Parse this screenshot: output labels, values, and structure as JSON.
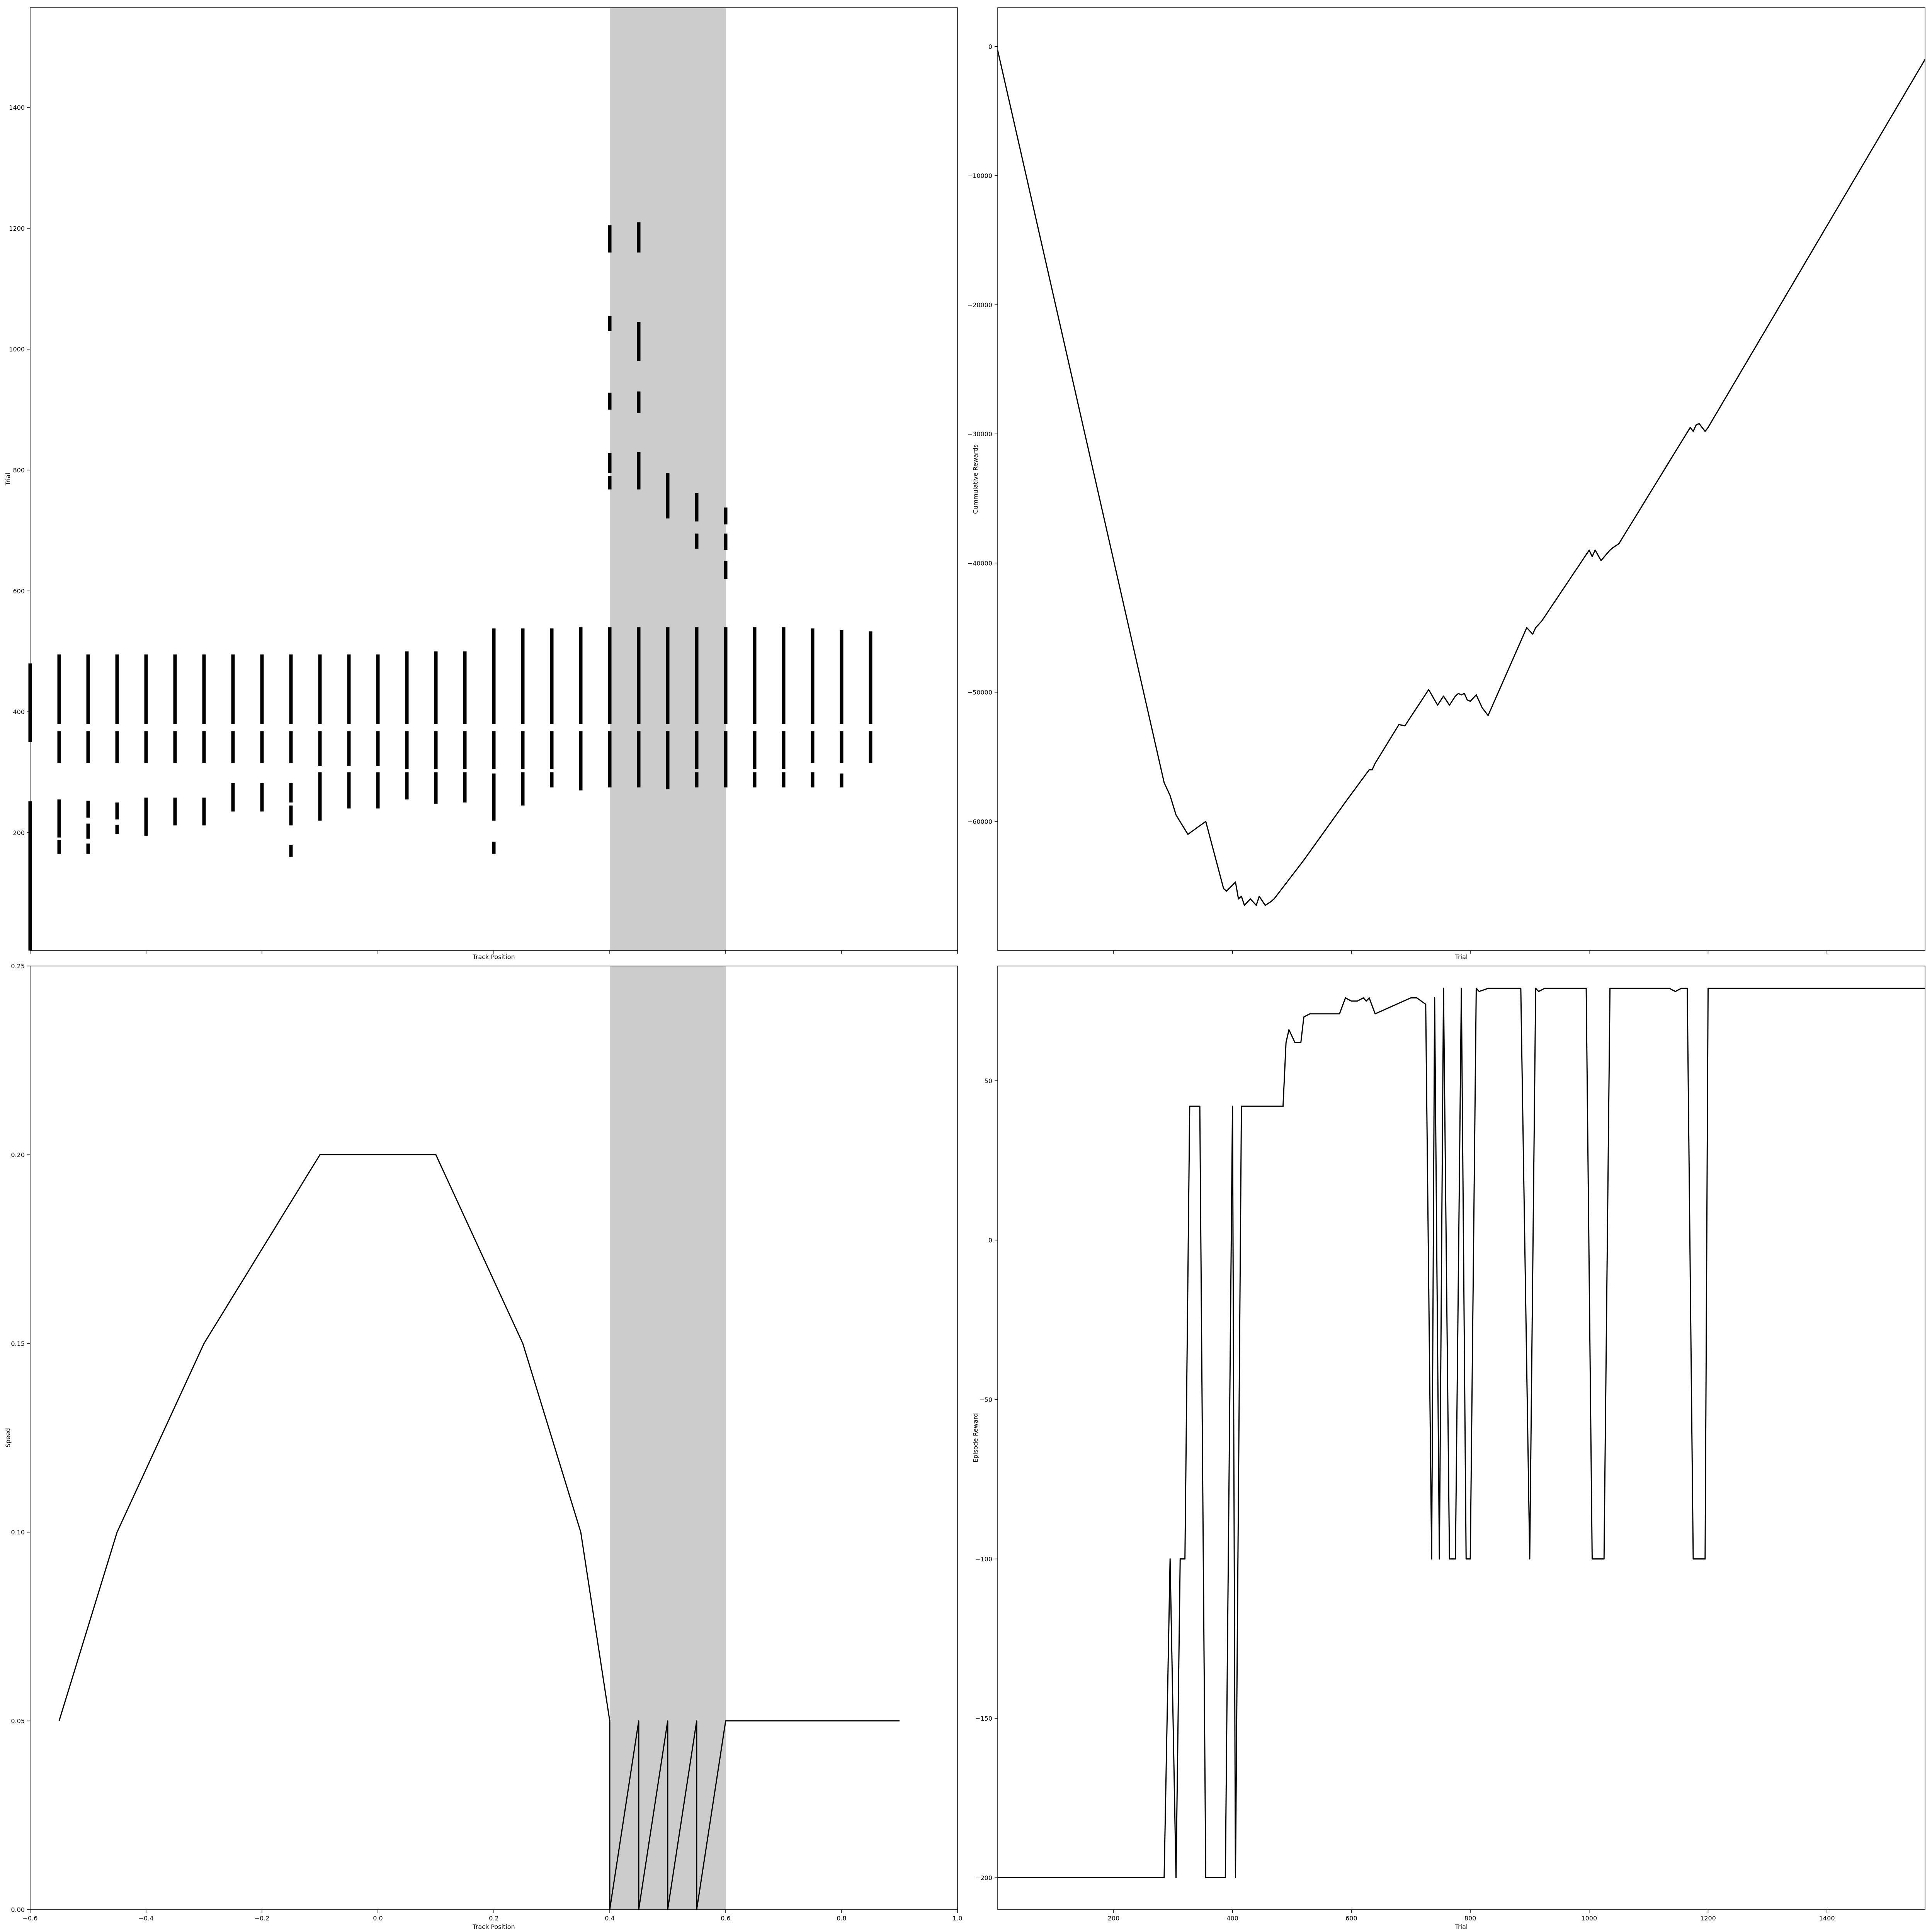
{
  "chart_data": [
    {
      "id": "top_left",
      "type": "scatter",
      "xlabel": "Track Position",
      "ylabel": "Trial",
      "xlim": [
        -0.6,
        1.0
      ],
      "ylim": [
        5,
        1565
      ],
      "yticks": [
        {
          "v": 200,
          "t": "200"
        },
        {
          "v": 400,
          "t": "400"
        },
        {
          "v": 600,
          "t": "600"
        },
        {
          "v": 800,
          "t": "800"
        },
        {
          "v": 1000,
          "t": "1000"
        },
        {
          "v": 1200,
          "t": "1200"
        },
        {
          "v": 1400,
          "t": "1400"
        }
      ],
      "xticks": [],
      "xtickmarks": [
        -0.6,
        -0.4,
        -0.2,
        0.0,
        0.2,
        0.4,
        0.6,
        0.8,
        1.0
      ],
      "shade": [
        0.4,
        0.6
      ],
      "segments": [
        {
          "x": -0.6,
          "y0": 5,
          "y1": 252
        },
        {
          "x": -0.6,
          "y0": 350,
          "y1": 480
        },
        {
          "x": -0.55,
          "y0": 165,
          "y1": 188
        },
        {
          "x": -0.55,
          "y0": 192,
          "y1": 255
        },
        {
          "x": -0.55,
          "y0": 315,
          "y1": 368
        },
        {
          "x": -0.55,
          "y0": 380,
          "y1": 495
        },
        {
          "x": -0.5,
          "y0": 165,
          "y1": 182
        },
        {
          "x": -0.5,
          "y0": 190,
          "y1": 215
        },
        {
          "x": -0.5,
          "y0": 225,
          "y1": 253
        },
        {
          "x": -0.5,
          "y0": 315,
          "y1": 368
        },
        {
          "x": -0.5,
          "y0": 380,
          "y1": 495
        },
        {
          "x": -0.45,
          "y0": 198,
          "y1": 213
        },
        {
          "x": -0.45,
          "y0": 222,
          "y1": 250
        },
        {
          "x": -0.45,
          "y0": 315,
          "y1": 368
        },
        {
          "x": -0.45,
          "y0": 380,
          "y1": 495
        },
        {
          "x": -0.4,
          "y0": 195,
          "y1": 258
        },
        {
          "x": -0.4,
          "y0": 315,
          "y1": 368
        },
        {
          "x": -0.4,
          "y0": 380,
          "y1": 495
        },
        {
          "x": -0.35,
          "y0": 212,
          "y1": 258
        },
        {
          "x": -0.35,
          "y0": 315,
          "y1": 368
        },
        {
          "x": -0.35,
          "y0": 380,
          "y1": 495
        },
        {
          "x": -0.3,
          "y0": 212,
          "y1": 258
        },
        {
          "x": -0.3,
          "y0": 315,
          "y1": 368
        },
        {
          "x": -0.3,
          "y0": 380,
          "y1": 495
        },
        {
          "x": -0.25,
          "y0": 235,
          "y1": 282
        },
        {
          "x": -0.25,
          "y0": 315,
          "y1": 368
        },
        {
          "x": -0.25,
          "y0": 380,
          "y1": 495
        },
        {
          "x": -0.2,
          "y0": 235,
          "y1": 282
        },
        {
          "x": -0.2,
          "y0": 315,
          "y1": 368
        },
        {
          "x": -0.2,
          "y0": 380,
          "y1": 495
        },
        {
          "x": -0.15,
          "y0": 160,
          "y1": 180
        },
        {
          "x": -0.15,
          "y0": 212,
          "y1": 245
        },
        {
          "x": -0.15,
          "y0": 250,
          "y1": 282
        },
        {
          "x": -0.15,
          "y0": 315,
          "y1": 368
        },
        {
          "x": -0.15,
          "y0": 380,
          "y1": 495
        },
        {
          "x": -0.1,
          "y0": 220,
          "y1": 300
        },
        {
          "x": -0.1,
          "y0": 310,
          "y1": 368
        },
        {
          "x": -0.1,
          "y0": 380,
          "y1": 495
        },
        {
          "x": -0.05,
          "y0": 240,
          "y1": 300
        },
        {
          "x": -0.05,
          "y0": 310,
          "y1": 368
        },
        {
          "x": -0.05,
          "y0": 380,
          "y1": 495
        },
        {
          "x": 0.0,
          "y0": 240,
          "y1": 300
        },
        {
          "x": 0.0,
          "y0": 310,
          "y1": 368
        },
        {
          "x": 0.0,
          "y0": 380,
          "y1": 495
        },
        {
          "x": 0.05,
          "y0": 255,
          "y1": 300
        },
        {
          "x": 0.05,
          "y0": 305,
          "y1": 368
        },
        {
          "x": 0.05,
          "y0": 380,
          "y1": 500
        },
        {
          "x": 0.1,
          "y0": 248,
          "y1": 300
        },
        {
          "x": 0.1,
          "y0": 305,
          "y1": 368
        },
        {
          "x": 0.1,
          "y0": 380,
          "y1": 500
        },
        {
          "x": 0.15,
          "y0": 250,
          "y1": 300
        },
        {
          "x": 0.15,
          "y0": 305,
          "y1": 368
        },
        {
          "x": 0.15,
          "y0": 380,
          "y1": 500
        },
        {
          "x": 0.2,
          "y0": 165,
          "y1": 185
        },
        {
          "x": 0.2,
          "y0": 220,
          "y1": 298
        },
        {
          "x": 0.2,
          "y0": 305,
          "y1": 368
        },
        {
          "x": 0.2,
          "y0": 380,
          "y1": 538
        },
        {
          "x": 0.25,
          "y0": 245,
          "y1": 300
        },
        {
          "x": 0.25,
          "y0": 305,
          "y1": 368
        },
        {
          "x": 0.25,
          "y0": 380,
          "y1": 538
        },
        {
          "x": 0.3,
          "y0": 275,
          "y1": 300
        },
        {
          "x": 0.3,
          "y0": 305,
          "y1": 368
        },
        {
          "x": 0.3,
          "y0": 380,
          "y1": 538
        },
        {
          "x": 0.35,
          "y0": 270,
          "y1": 368
        },
        {
          "x": 0.35,
          "y0": 380,
          "y1": 540
        },
        {
          "x": 0.4,
          "y0": 275,
          "y1": 368
        },
        {
          "x": 0.4,
          "y0": 380,
          "y1": 540
        },
        {
          "x": 0.4,
          "y0": 768,
          "y1": 790
        },
        {
          "x": 0.4,
          "y0": 795,
          "y1": 828
        },
        {
          "x": 0.4,
          "y0": 900,
          "y1": 928
        },
        {
          "x": 0.4,
          "y0": 1030,
          "y1": 1055
        },
        {
          "x": 0.4,
          "y0": 1160,
          "y1": 1205
        },
        {
          "x": 0.45,
          "y0": 275,
          "y1": 368
        },
        {
          "x": 0.45,
          "y0": 380,
          "y1": 540
        },
        {
          "x": 0.45,
          "y0": 768,
          "y1": 830
        },
        {
          "x": 0.45,
          "y0": 895,
          "y1": 930
        },
        {
          "x": 0.45,
          "y0": 980,
          "y1": 1045
        },
        {
          "x": 0.45,
          "y0": 1160,
          "y1": 1210
        },
        {
          "x": 0.5,
          "y0": 272,
          "y1": 368
        },
        {
          "x": 0.5,
          "y0": 380,
          "y1": 540
        },
        {
          "x": 0.5,
          "y0": 720,
          "y1": 795
        },
        {
          "x": 0.55,
          "y0": 275,
          "y1": 300
        },
        {
          "x": 0.55,
          "y0": 305,
          "y1": 368
        },
        {
          "x": 0.55,
          "y0": 380,
          "y1": 540
        },
        {
          "x": 0.55,
          "y0": 670,
          "y1": 695
        },
        {
          "x": 0.55,
          "y0": 715,
          "y1": 762
        },
        {
          "x": 0.6,
          "y0": 275,
          "y1": 368
        },
        {
          "x": 0.6,
          "y0": 380,
          "y1": 540
        },
        {
          "x": 0.6,
          "y0": 620,
          "y1": 650
        },
        {
          "x": 0.6,
          "y0": 668,
          "y1": 695
        },
        {
          "x": 0.6,
          "y0": 710,
          "y1": 738
        },
        {
          "x": 0.65,
          "y0": 275,
          "y1": 300
        },
        {
          "x": 0.65,
          "y0": 305,
          "y1": 368
        },
        {
          "x": 0.65,
          "y0": 380,
          "y1": 540
        },
        {
          "x": 0.7,
          "y0": 275,
          "y1": 300
        },
        {
          "x": 0.7,
          "y0": 305,
          "y1": 368
        },
        {
          "x": 0.7,
          "y0": 380,
          "y1": 540
        },
        {
          "x": 0.75,
          "y0": 275,
          "y1": 300
        },
        {
          "x": 0.75,
          "y0": 315,
          "y1": 368
        },
        {
          "x": 0.75,
          "y0": 380,
          "y1": 538
        },
        {
          "x": 0.8,
          "y0": 275,
          "y1": 298
        },
        {
          "x": 0.8,
          "y0": 315,
          "y1": 368
        },
        {
          "x": 0.8,
          "y0": 380,
          "y1": 535
        },
        {
          "x": 0.85,
          "y0": 315,
          "y1": 368
        },
        {
          "x": 0.85,
          "y0": 380,
          "y1": 533
        }
      ]
    },
    {
      "id": "top_right",
      "type": "line",
      "xlabel": "Trial",
      "ylabel": "Cummulative Rewards",
      "xlim": [
        5,
        1565
      ],
      "ylim": [
        -70000,
        3000
      ],
      "yticks": [
        {
          "v": 0,
          "t": "0"
        },
        {
          "v": -10000,
          "t": "−10000"
        },
        {
          "v": -20000,
          "t": "−20000"
        },
        {
          "v": -30000,
          "t": "−30000"
        },
        {
          "v": -40000,
          "t": "−40000"
        },
        {
          "v": -50000,
          "t": "−50000"
        },
        {
          "v": -60000,
          "t": "−60000"
        }
      ],
      "xticks": [],
      "xtickmarks": [
        200,
        400,
        600,
        800,
        1000,
        1200,
        1400
      ],
      "x": [
        5,
        285,
        295,
        305,
        325,
        355,
        385,
        390,
        405,
        410,
        415,
        420,
        430,
        440,
        445,
        455,
        465,
        470,
        520,
        590,
        630,
        635,
        640,
        680,
        690,
        730,
        745,
        755,
        765,
        775,
        780,
        785,
        790,
        795,
        800,
        810,
        820,
        830,
        895,
        905,
        910,
        920,
        1000,
        1005,
        1010,
        1020,
        1035,
        1040,
        1050,
        1170,
        1175,
        1180,
        1185,
        1195,
        1200,
        1565
      ],
      "y": [
        -300,
        -57000,
        -58000,
        -59500,
        -61000,
        -60000,
        -65200,
        -65400,
        -64700,
        -66000,
        -65800,
        -66500,
        -66000,
        -66500,
        -65800,
        -66500,
        -66200,
        -66000,
        -63000,
        -58500,
        -56000,
        -56000,
        -55500,
        -52500,
        -52600,
        -49800,
        -51000,
        -50300,
        -51000,
        -50300,
        -50100,
        -50200,
        -50100,
        -50600,
        -50700,
        -50200,
        -51200,
        -51800,
        -45000,
        -45500,
        -45000,
        -44500,
        -39000,
        -39500,
        -39000,
        -39800,
        -39000,
        -38800,
        -38500,
        -29500,
        -29800,
        -29300,
        -29200,
        -29800,
        -29500,
        -1000
      ]
    },
    {
      "id": "bottom_left",
      "type": "line",
      "xlabel": "Track Position",
      "ylabel": "Speed",
      "xlim": [
        -0.6,
        1.0
      ],
      "ylim": [
        0.0,
        0.25
      ],
      "yticks": [
        {
          "v": 0.0,
          "t": "0.00"
        },
        {
          "v": 0.05,
          "t": "0.05"
        },
        {
          "v": 0.1,
          "t": "0.10"
        },
        {
          "v": 0.15,
          "t": "0.15"
        },
        {
          "v": 0.2,
          "t": "0.20"
        },
        {
          "v": 0.25,
          "t": "0.25"
        }
      ],
      "xticks": [
        {
          "v": -0.6,
          "t": "−0.6"
        },
        {
          "v": -0.4,
          "t": "−0.4"
        },
        {
          "v": -0.2,
          "t": "−0.2"
        },
        {
          "v": 0.0,
          "t": "0.0"
        },
        {
          "v": 0.2,
          "t": "0.2"
        },
        {
          "v": 0.4,
          "t": "0.4"
        },
        {
          "v": 0.6,
          "t": "0.6"
        },
        {
          "v": 0.8,
          "t": "0.8"
        },
        {
          "v": 1.0,
          "t": "1.0"
        }
      ],
      "shade": [
        0.4,
        0.6
      ],
      "x": [
        -0.55,
        -0.45,
        -0.3,
        -0.1,
        0.0,
        0.1,
        0.25,
        0.35,
        0.4,
        0.4,
        0.45,
        0.45,
        0.5,
        0.5,
        0.55,
        0.55,
        0.6,
        0.9
      ],
      "y": [
        0.05,
        0.1,
        0.15,
        0.2,
        0.2,
        0.2,
        0.15,
        0.1,
        0.05,
        0.0,
        0.05,
        0.0,
        0.05,
        0.0,
        0.05,
        0.0,
        0.05,
        0.05
      ]
    },
    {
      "id": "bottom_right",
      "type": "line",
      "xlabel": "Trial",
      "ylabel": "Episode Reward",
      "xlim": [
        5,
        1565
      ],
      "ylim": [
        -210,
        86
      ],
      "yticks": [
        {
          "v": 50,
          "t": "50"
        },
        {
          "v": 0,
          "t": "0"
        },
        {
          "v": -50,
          "t": "−50"
        },
        {
          "v": -100,
          "t": "−100"
        },
        {
          "v": -150,
          "t": "−150"
        },
        {
          "v": -200,
          "t": "−200"
        }
      ],
      "xticks": [
        {
          "v": 200,
          "t": "200"
        },
        {
          "v": 400,
          "t": "400"
        },
        {
          "v": 600,
          "t": "600"
        },
        {
          "v": 800,
          "t": "800"
        },
        {
          "v": 1000,
          "t": "1000"
        },
        {
          "v": 1200,
          "t": "1200"
        },
        {
          "v": 1400,
          "t": "1400"
        }
      ],
      "x": [
        5,
        285,
        295,
        305,
        312,
        320,
        328,
        345,
        355,
        385,
        388,
        400,
        405,
        415,
        485,
        490,
        495,
        505,
        515,
        520,
        530,
        580,
        590,
        600,
        610,
        620,
        625,
        630,
        640,
        700,
        710,
        725,
        735,
        740,
        748,
        755,
        765,
        775,
        785,
        793,
        800,
        810,
        815,
        830,
        850,
        870,
        885,
        900,
        910,
        915,
        925,
        935,
        955,
        995,
        1005,
        1015,
        1025,
        1035,
        1040,
        1135,
        1145,
        1155,
        1165,
        1175,
        1185,
        1195,
        1200,
        1565
      ],
      "y": [
        -200,
        -200,
        -100,
        -200,
        -100,
        -100,
        42,
        42,
        -200,
        -200,
        -200,
        42,
        -200,
        42,
        42,
        62,
        66,
        62,
        62,
        70,
        71,
        71,
        76,
        75,
        75,
        76,
        75,
        76,
        71,
        76,
        76,
        74,
        -100,
        76,
        -100,
        79,
        -100,
        -100,
        79,
        -100,
        -100,
        79,
        78,
        79,
        79,
        79,
        79,
        -100,
        79,
        78,
        79,
        79,
        79,
        79,
        -100,
        -100,
        -100,
        79,
        79,
        79,
        78,
        79,
        79,
        -100,
        -100,
        -100,
        79,
        79
      ]
    }
  ]
}
